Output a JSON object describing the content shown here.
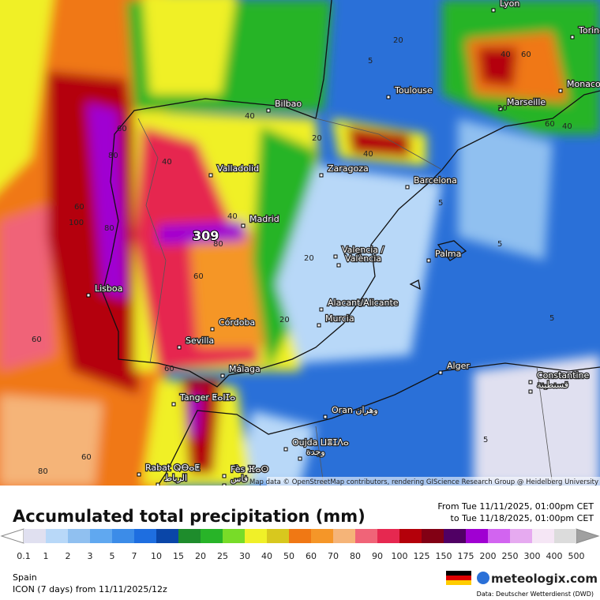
{
  "header": {
    "title": "Accumulated total precipitation (mm)",
    "period_from": "From Tue 11/11/2025, 01:00pm CET",
    "period_to": "to Tue 11/18/2025, 01:00pm CET"
  },
  "map": {
    "attribution": "Map data © OpenStreetMap contributors, rendering GIScience Research Group @ Heidelberg University",
    "cities": [
      "Lyon",
      "Torino",
      "Monaco",
      "Marseille",
      "Toulouse",
      "Bilbao",
      "Zaragoza",
      "Barcelona",
      "Valladolid",
      "Madrid",
      "Valencia /",
      "València",
      "Palma",
      "Lisboa",
      "Alacant/Alicante",
      "Murcia",
      "Córdoba",
      "Sevilla",
      "Málaga",
      "Alger",
      "Constantine",
      "قسنطينة",
      "Tanger ⵟⴰⵏⵊⴰ",
      "Oran وهران",
      "Oujda ⵡⴻⵊⴷⴰ",
      "وجدة",
      "Rabat ⵕⴱⴰⵟ",
      "الرباط",
      "Fès ⴼⴰⵙ",
      "فاس"
    ],
    "contour_labels": [
      "309",
      "40",
      "80",
      "60",
      "100",
      "80",
      "60",
      "60",
      "40",
      "20",
      "20",
      "40",
      "40",
      "60",
      "20",
      "5",
      "5",
      "5",
      "5",
      "5",
      "20",
      "40",
      "60",
      "40",
      "60",
      "80",
      "60",
      "60",
      "80",
      "20"
    ]
  },
  "legend": {
    "labels": [
      0.1,
      1,
      2,
      3,
      5,
      7,
      10,
      15,
      20,
      25,
      30,
      40,
      50,
      60,
      70,
      80,
      90,
      100,
      125,
      150,
      175,
      200,
      250,
      300,
      400,
      500
    ],
    "colors": [
      "#e0e0f0",
      "#b8d8f8",
      "#90c0f0",
      "#60a8f0",
      "#3c8ce8",
      "#1e6ee0",
      "#0a46a8",
      "#1e8c2c",
      "#28b428",
      "#78dc28",
      "#f0f028",
      "#d8c81e",
      "#f07814",
      "#f59628",
      "#f5b478",
      "#f06478",
      "#e62850",
      "#b4000a",
      "#820014",
      "#500064",
      "#a000d2",
      "#d264f0",
      "#e6aaf0",
      "#f5e6f5",
      "#dcdcdc"
    ]
  },
  "footer": {
    "region": "Spain",
    "model": "ICON (7 days)  from  11/11/2025/12z",
    "brand": "meteologix.com",
    "source": "Data: Deutscher Wetterdienst (DWD)"
  }
}
